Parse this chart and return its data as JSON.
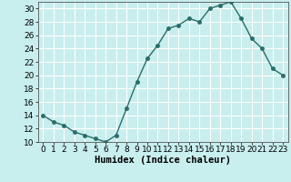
{
  "x": [
    0,
    1,
    2,
    3,
    4,
    5,
    6,
    7,
    8,
    9,
    10,
    11,
    12,
    13,
    14,
    15,
    16,
    17,
    18,
    19,
    20,
    21,
    22,
    23
  ],
  "y": [
    14,
    13,
    12.5,
    11.5,
    11,
    10.5,
    10,
    11,
    15,
    19,
    22.5,
    24.5,
    27,
    27.5,
    28.5,
    28,
    30,
    30.5,
    31,
    28.5,
    25.5,
    24,
    21,
    20
  ],
  "line_color": "#2a6e6a",
  "marker_color": "#2a6e6a",
  "bg_color": "#c8eeee",
  "grid_color": "#ffffff",
  "xlabel": "Humidex (Indice chaleur)",
  "ylim": [
    10,
    31
  ],
  "xlim": [
    -0.5,
    23.5
  ],
  "yticks": [
    10,
    12,
    14,
    16,
    18,
    20,
    22,
    24,
    26,
    28,
    30
  ],
  "xticks": [
    0,
    1,
    2,
    3,
    4,
    5,
    6,
    7,
    8,
    9,
    10,
    11,
    12,
    13,
    14,
    15,
    16,
    17,
    18,
    19,
    20,
    21,
    22,
    23
  ],
  "tick_label_fontsize": 6.5,
  "xlabel_fontsize": 7.5,
  "marker_size": 2.5,
  "linewidth": 1.0
}
